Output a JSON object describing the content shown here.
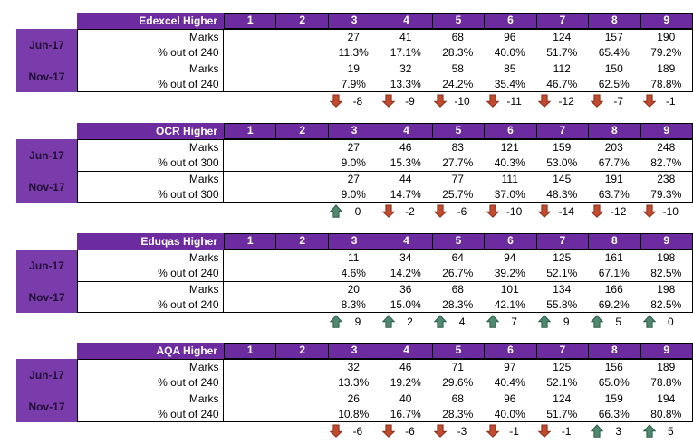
{
  "colors": {
    "header_purple": "#6C2B9E",
    "side_purple": "#7A3BAB",
    "side_text": "#211036",
    "grid_line": "#000000",
    "up_arrow_fill": "#4F8A70",
    "up_arrow_stroke": "#2E5B49",
    "down_arrow_fill": "#C14B2E",
    "down_arrow_stroke": "#8A2F1C"
  },
  "sessions": [
    "Jun-17",
    "Nov-17"
  ],
  "grade_columns": [
    "1",
    "2",
    "3",
    "4",
    "5",
    "6",
    "7",
    "8",
    "9"
  ],
  "tables": [
    {
      "title": "Edexcel Higher",
      "rows": [
        {
          "label": "Marks",
          "values": [
            "",
            "",
            "27",
            "41",
            "68",
            "96",
            "124",
            "157",
            "190"
          ]
        },
        {
          "label": "% out of 240",
          "values": [
            "",
            "",
            "11.3%",
            "17.1%",
            "28.3%",
            "40.0%",
            "51.7%",
            "65.4%",
            "79.2%"
          ]
        },
        {
          "label": "Marks",
          "values": [
            "",
            "",
            "19",
            "32",
            "58",
            "85",
            "112",
            "150",
            "189"
          ]
        },
        {
          "label": "% out of 240",
          "values": [
            "",
            "",
            "7.9%",
            "13.3%",
            "24.2%",
            "35.4%",
            "46.7%",
            "62.5%",
            "78.8%"
          ]
        }
      ],
      "changes": [
        null,
        null,
        {
          "dir": "down",
          "value": "-8"
        },
        {
          "dir": "down",
          "value": "-9"
        },
        {
          "dir": "down",
          "value": "-10"
        },
        {
          "dir": "down",
          "value": "-11"
        },
        {
          "dir": "down",
          "value": "-12"
        },
        {
          "dir": "down",
          "value": "-7"
        },
        {
          "dir": "down",
          "value": "-1"
        }
      ]
    },
    {
      "title": "OCR Higher",
      "rows": [
        {
          "label": "Marks",
          "values": [
            "",
            "",
            "27",
            "46",
            "83",
            "121",
            "159",
            "203",
            "248"
          ]
        },
        {
          "label": "% out of 300",
          "values": [
            "",
            "",
            "9.0%",
            "15.3%",
            "27.7%",
            "40.3%",
            "53.0%",
            "67.7%",
            "82.7%"
          ]
        },
        {
          "label": "Marks",
          "values": [
            "",
            "",
            "27",
            "44",
            "77",
            "111",
            "145",
            "191",
            "238"
          ]
        },
        {
          "label": "% out of 300",
          "values": [
            "",
            "",
            "9.0%",
            "14.7%",
            "25.7%",
            "37.0%",
            "48.3%",
            "63.7%",
            "79.3%"
          ]
        }
      ],
      "changes": [
        null,
        null,
        {
          "dir": "up",
          "value": "0"
        },
        {
          "dir": "down",
          "value": "-2"
        },
        {
          "dir": "down",
          "value": "-6"
        },
        {
          "dir": "down",
          "value": "-10"
        },
        {
          "dir": "down",
          "value": "-14"
        },
        {
          "dir": "down",
          "value": "-12"
        },
        {
          "dir": "down",
          "value": "-10"
        }
      ]
    },
    {
      "title": "Eduqas Higher",
      "rows": [
        {
          "label": "Marks",
          "values": [
            "",
            "",
            "11",
            "34",
            "64",
            "94",
            "125",
            "161",
            "198"
          ]
        },
        {
          "label": "% out of 240",
          "values": [
            "",
            "",
            "4.6%",
            "14.2%",
            "26.7%",
            "39.2%",
            "52.1%",
            "67.1%",
            "82.5%"
          ]
        },
        {
          "label": "Marks",
          "values": [
            "",
            "",
            "20",
            "36",
            "68",
            "101",
            "134",
            "166",
            "198"
          ]
        },
        {
          "label": "% out of 240",
          "values": [
            "",
            "",
            "8.3%",
            "15.0%",
            "28.3%",
            "42.1%",
            "55.8%",
            "69.2%",
            "82.5%"
          ]
        }
      ],
      "changes": [
        null,
        null,
        {
          "dir": "up",
          "value": "9"
        },
        {
          "dir": "up",
          "value": "2"
        },
        {
          "dir": "up",
          "value": "4"
        },
        {
          "dir": "up",
          "value": "7"
        },
        {
          "dir": "up",
          "value": "9"
        },
        {
          "dir": "up",
          "value": "5"
        },
        {
          "dir": "up",
          "value": "0"
        }
      ]
    },
    {
      "title": "AQA Higher",
      "rows": [
        {
          "label": "Marks",
          "values": [
            "",
            "",
            "32",
            "46",
            "71",
            "97",
            "125",
            "156",
            "189"
          ]
        },
        {
          "label": "% out of 240",
          "values": [
            "",
            "",
            "13.3%",
            "19.2%",
            "29.6%",
            "40.4%",
            "52.1%",
            "65.0%",
            "78.8%"
          ]
        },
        {
          "label": "Marks",
          "values": [
            "",
            "",
            "26",
            "40",
            "68",
            "96",
            "124",
            "159",
            "194"
          ]
        },
        {
          "label": "% out of 240",
          "values": [
            "",
            "",
            "10.8%",
            "16.7%",
            "28.3%",
            "40.0%",
            "51.7%",
            "66.3%",
            "80.8%"
          ]
        }
      ],
      "changes": [
        null,
        null,
        {
          "dir": "down",
          "value": "-6"
        },
        {
          "dir": "down",
          "value": "-6"
        },
        {
          "dir": "down",
          "value": "-3"
        },
        {
          "dir": "down",
          "value": "-1"
        },
        {
          "dir": "down",
          "value": "-1"
        },
        {
          "dir": "up",
          "value": "3"
        },
        {
          "dir": "up",
          "value": "5"
        }
      ]
    }
  ]
}
